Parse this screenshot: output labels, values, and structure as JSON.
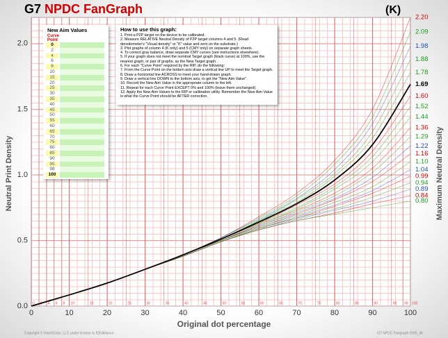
{
  "chart_data": {
    "type": "line",
    "title_parts": [
      "G7",
      "NPDC FanGraph"
    ],
    "channel_label": "(K)",
    "x_label": "Original dot percentage",
    "y_label": "Neutral Print Density",
    "y2_label": "Maximum Neutral Density",
    "footer_left": "Copyright © HutchColor, LLC under license to IDEAlliance",
    "footer_right": "G7 NPDC Fangraph 2005_dh",
    "x": [
      0,
      10,
      20,
      30,
      40,
      50,
      60,
      70,
      80,
      90,
      100
    ],
    "xlim": [
      0,
      100
    ],
    "ylim": [
      0,
      2.2
    ],
    "xticks": [
      0,
      10,
      20,
      30,
      40,
      50,
      60,
      70,
      80,
      90,
      100
    ],
    "yticks": [
      {
        "value": 0,
        "label": "0.0"
      },
      0.5,
      {
        "value": 1,
        "label": "1.0"
      },
      1.5,
      {
        "value": 2,
        "label": "2.0"
      }
    ],
    "grid": true,
    "series": [
      {
        "name": "2.20",
        "color": "#d00000",
        "values": [
          0,
          0.085,
          0.175,
          0.28,
          0.39,
          0.52,
          0.68,
          0.86,
          1.11,
          1.5,
          2.2
        ]
      },
      {
        "name": "2.09",
        "color": "#1a9e1a",
        "values": [
          0,
          0.085,
          0.175,
          0.28,
          0.39,
          0.52,
          0.67,
          0.84,
          1.08,
          1.44,
          2.09
        ]
      },
      {
        "name": "1.98",
        "color": "#1f4fb8",
        "values": [
          0,
          0.085,
          0.175,
          0.28,
          0.39,
          0.52,
          0.66,
          0.82,
          1.04,
          1.39,
          1.98
        ]
      },
      {
        "name": "1.88",
        "color": "#1a9e1a",
        "values": [
          0,
          0.085,
          0.175,
          0.28,
          0.39,
          0.51,
          0.65,
          0.81,
          1.01,
          1.33,
          1.88
        ]
      },
      {
        "name": "1.78",
        "color": "#1a9e1a",
        "values": [
          0,
          0.085,
          0.175,
          0.28,
          0.39,
          0.51,
          0.65,
          0.79,
          0.99,
          1.28,
          1.78
        ]
      },
      {
        "name": "1.69",
        "color": "#000000",
        "values": [
          0,
          0.085,
          0.175,
          0.28,
          0.39,
          0.51,
          0.64,
          0.78,
          0.96,
          1.23,
          1.69
        ]
      },
      {
        "name": "1.60",
        "color": "#d00000",
        "values": [
          0,
          0.085,
          0.175,
          0.28,
          0.39,
          0.51,
          0.63,
          0.77,
          0.93,
          1.18,
          1.6
        ]
      },
      {
        "name": "1.52",
        "color": "#1a9e1a",
        "values": [
          0,
          0.085,
          0.175,
          0.28,
          0.39,
          0.51,
          0.63,
          0.75,
          0.91,
          1.14,
          1.52
        ]
      },
      {
        "name": "1.44",
        "color": "#1a9e1a",
        "values": [
          0,
          0.085,
          0.175,
          0.28,
          0.39,
          0.5,
          0.62,
          0.74,
          0.89,
          1.1,
          1.44
        ]
      },
      {
        "name": "1.36",
        "color": "#d00000",
        "values": [
          0,
          0.085,
          0.175,
          0.28,
          0.39,
          0.5,
          0.62,
          0.73,
          0.86,
          1.05,
          1.36
        ]
      },
      {
        "name": "1.29",
        "color": "#1a9e1a",
        "values": [
          0,
          0.085,
          0.175,
          0.28,
          0.39,
          0.5,
          0.61,
          0.72,
          0.84,
          1.02,
          1.29
        ]
      },
      {
        "name": "1.22",
        "color": "#1f4fb8",
        "values": [
          0,
          0.085,
          0.175,
          0.28,
          0.39,
          0.5,
          0.61,
          0.71,
          0.82,
          0.98,
          1.22
        ]
      },
      {
        "name": "1.16",
        "color": "#d00000",
        "values": [
          0,
          0.085,
          0.175,
          0.28,
          0.39,
          0.5,
          0.6,
          0.7,
          0.81,
          0.95,
          1.16
        ]
      },
      {
        "name": "1.10",
        "color": "#1a9e1a",
        "values": [
          0,
          0.085,
          0.175,
          0.28,
          0.39,
          0.5,
          0.6,
          0.69,
          0.79,
          0.91,
          1.1
        ]
      },
      {
        "name": "1.04",
        "color": "#1f4fb8",
        "values": [
          0,
          0.085,
          0.175,
          0.28,
          0.38,
          0.49,
          0.59,
          0.68,
          0.77,
          0.88,
          1.04
        ]
      },
      {
        "name": "0.99",
        "color": "#d00000",
        "values": [
          0,
          0.085,
          0.175,
          0.28,
          0.38,
          0.49,
          0.59,
          0.67,
          0.76,
          0.86,
          0.99
        ]
      },
      {
        "name": "0.94",
        "color": "#1a9e1a",
        "values": [
          0,
          0.085,
          0.175,
          0.28,
          0.38,
          0.49,
          0.59,
          0.67,
          0.74,
          0.83,
          0.94
        ]
      },
      {
        "name": "0.89",
        "color": "#1f4fb8",
        "values": [
          0,
          0.085,
          0.175,
          0.28,
          0.38,
          0.49,
          0.58,
          0.66,
          0.73,
          0.8,
          0.89
        ]
      },
      {
        "name": "0.84",
        "color": "#d00000",
        "values": [
          0,
          0.085,
          0.175,
          0.28,
          0.38,
          0.49,
          0.58,
          0.65,
          0.71,
          0.78,
          0.84
        ]
      },
      {
        "name": "0.80",
        "color": "#1a9e1a",
        "values": [
          0,
          0.085,
          0.175,
          0.28,
          0.38,
          0.49,
          0.58,
          0.65,
          0.7,
          0.75,
          0.8
        ]
      }
    ]
  },
  "aim_table": {
    "title": "New Aim Values",
    "curve_point_header": [
      "Curve",
      "Point"
    ],
    "points": [
      0,
      2,
      4,
      6,
      8,
      10,
      15,
      20,
      25,
      30,
      35,
      40,
      45,
      50,
      55,
      60,
      65,
      70,
      75,
      80,
      85,
      90,
      95,
      98,
      100
    ]
  },
  "instructions": {
    "title": "How to use this graph:",
    "steps": [
      "1. Print a P2P target on the device to be calibrated.",
      "2. Measure RELATIVE Neutral Density of P2P target columns 4 and 5. (Read densitometer's \"Visual density\" or \"K\" value and zero on the substrate.)",
      "3. Plot graphs of column 4 (K only) and 5 (CMY only) on separate graph sheets.",
      "4. To correct gray balance, draw separate CMY curves (see instructions elsewhere).",
      "5. If your graph does not meet the nominal Target graph (black curve) at 100%, use the nearest graph, or pair of graphs, as the New Target graph.",
      "6. For each \"Curve Point\" required by the RIP, do the following:",
      "7. From the Curve Point on the bottom axis draw a vertical line UP to meet the Target graph.",
      "8. Draw a horizontal line ACROSS to meet your hand-drawn graph.",
      "9. Draw a vertical line DOWN to the bottom axis, to get the \"New Aim Value\".",
      "10. Record the New Aim Value in the appropriate column to the left.",
      "11. Repeat for each Curve Point EXCEPT 0% and 100% (leave them unchanged).",
      "12. Apply the New Aim Values to the RIP or calibration utility. Remember the New Aim Value is what the Curve Point should be AFTER correction."
    ]
  }
}
